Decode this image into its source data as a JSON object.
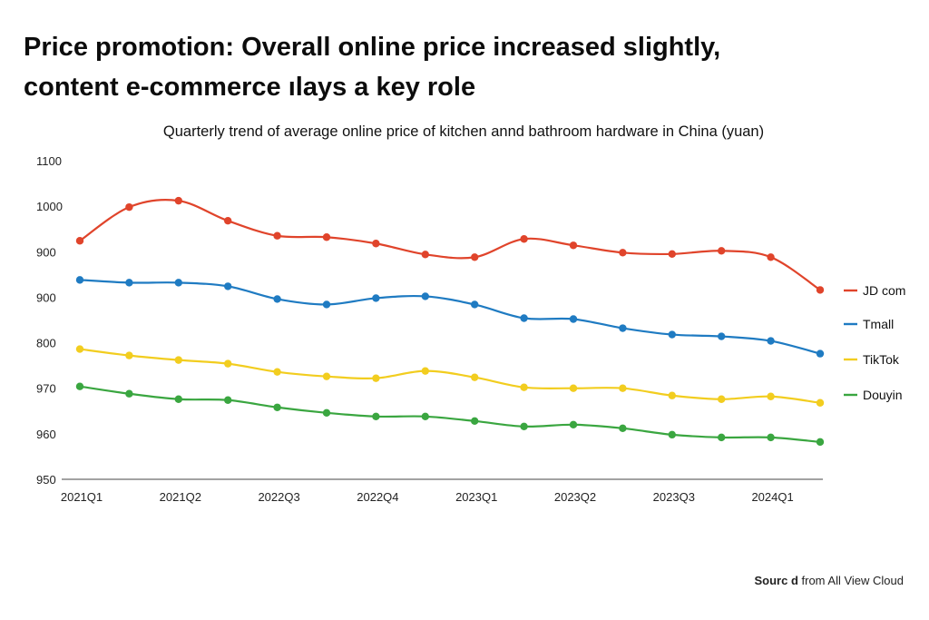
{
  "headline": {
    "line1": "Price promotion: Overall online price increased slightly,",
    "line2": "content e-commerce ılays a key role"
  },
  "source": {
    "bold": "Sourc d",
    "rest": "from All View Cloud"
  },
  "chart_data": {
    "type": "line",
    "title": "Quarterly trend of average online price of kitchen annd bathroom hardware in China (yuan)",
    "xlabel": "",
    "ylabel": "",
    "grid": false,
    "legend": "right",
    "ylim": [
      0,
      7
    ],
    "y_tick_positions": [
      0,
      1,
      2,
      3,
      4,
      5,
      6,
      7
    ],
    "y_tick_labels": [
      "950",
      "960",
      "970",
      "800",
      "900",
      "900",
      "1000",
      "1100"
    ],
    "x_tick_indices": [
      0,
      2,
      4,
      6,
      8,
      10,
      12,
      14
    ],
    "x_tick_labels": [
      "2021Q1",
      "2021Q2",
      "2022Q3",
      "2022Q4",
      "2023Q1",
      "2023Q2",
      "2023Q3",
      "2024Q1"
    ],
    "x": [
      0,
      1,
      2,
      3,
      4,
      5,
      6,
      7,
      8,
      9,
      10,
      11,
      12,
      13,
      14,
      15
    ],
    "series": [
      {
        "name": "JD com",
        "color": "#e0442b",
        "values": [
          5.24,
          5.98,
          6.12,
          5.68,
          5.35,
          5.32,
          5.18,
          4.94,
          4.88,
          5.28,
          5.14,
          4.98,
          4.95,
          5.02,
          4.88,
          4.16
        ]
      },
      {
        "name": "Tmall",
        "color": "#1f7bc2",
        "values": [
          4.38,
          4.32,
          4.32,
          4.24,
          3.96,
          3.84,
          3.98,
          4.02,
          3.84,
          3.54,
          3.52,
          3.32,
          3.18,
          3.14,
          3.04,
          2.76
        ]
      },
      {
        "name": "TikTok",
        "color": "#f2cd1f",
        "values": [
          2.86,
          2.72,
          2.62,
          2.54,
          2.36,
          2.26,
          2.22,
          2.38,
          2.24,
          2.02,
          2.0,
          2.0,
          1.84,
          1.76,
          1.82,
          1.68
        ]
      },
      {
        "name": "Douyin",
        "color": "#3aa640",
        "values": [
          2.04,
          1.88,
          1.76,
          1.74,
          1.58,
          1.46,
          1.38,
          1.38,
          1.28,
          1.16,
          1.2,
          1.12,
          0.98,
          0.92,
          0.92,
          0.82
        ]
      }
    ]
  }
}
